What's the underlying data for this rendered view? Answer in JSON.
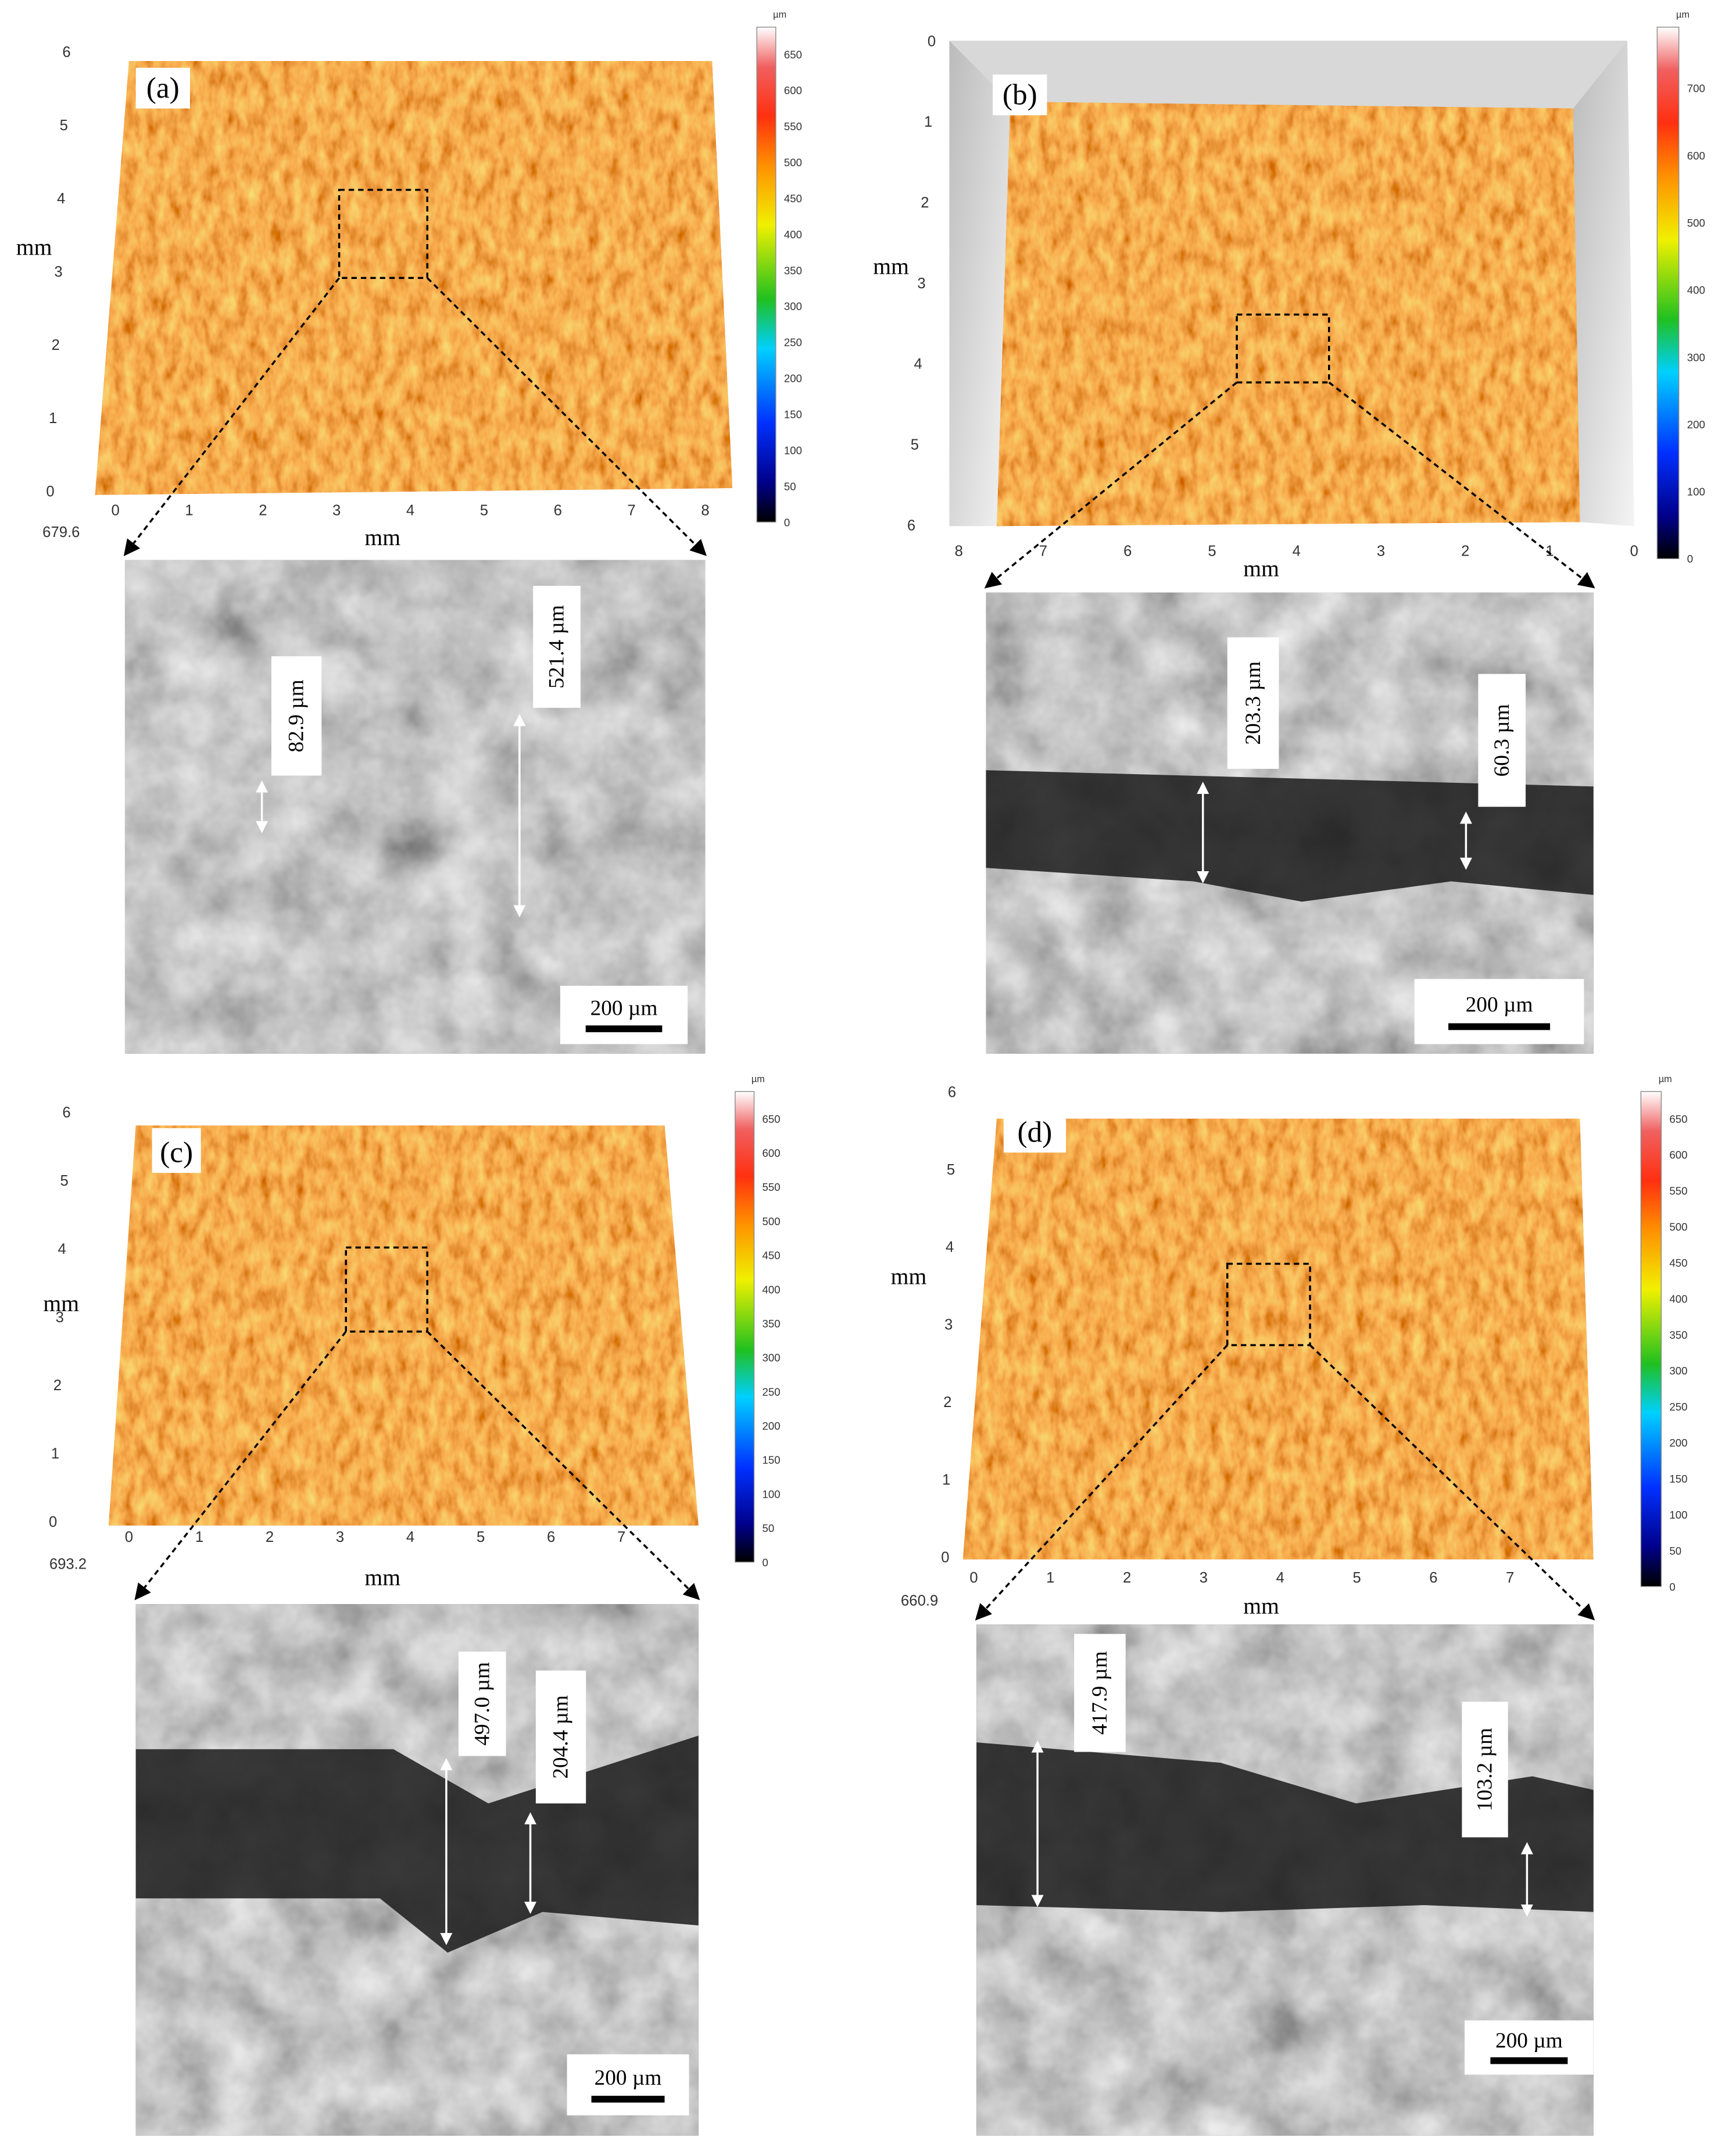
{
  "panels": [
    {
      "label": "(a)",
      "profile": {
        "y_axis_label": "mm",
        "x_axis_label": "mm",
        "y_ticks": [
          "0",
          "1",
          "2",
          "3",
          "4",
          "5",
          "6"
        ],
        "x_ticks": [
          "0",
          "1",
          "2",
          "3",
          "4",
          "5",
          "6",
          "7",
          "8"
        ],
        "corner_value": "679.6",
        "colorbar_unit": "µm",
        "colorbar_ticks": [
          "0",
          "50",
          "100",
          "150",
          "200",
          "250",
          "300",
          "350",
          "400",
          "450",
          "500",
          "550",
          "600",
          "650"
        ]
      },
      "sem": {
        "measurements": [
          "82.9 µm",
          "521.4 µm"
        ],
        "scale_bar": "200 µm"
      }
    },
    {
      "label": "(b)",
      "profile": {
        "y_axis_label": "mm",
        "x_axis_label": "mm",
        "y_ticks": [
          "0",
          "1",
          "2",
          "3",
          "4",
          "5",
          "6"
        ],
        "x_ticks": [
          "8",
          "7",
          "6",
          "5",
          "4",
          "3",
          "2",
          "1",
          "0"
        ],
        "colorbar_unit": "µm",
        "colorbar_ticks": [
          "0",
          "100",
          "200",
          "300",
          "400",
          "500",
          "600",
          "700"
        ]
      },
      "sem": {
        "measurements": [
          "203.3 µm",
          "60.3 µm"
        ],
        "scale_bar": "200 µm"
      }
    },
    {
      "label": "(c)",
      "profile": {
        "y_axis_label": "mm",
        "x_axis_label": "mm",
        "y_ticks": [
          "0",
          "1",
          "2",
          "3",
          "4",
          "5",
          "6"
        ],
        "x_ticks": [
          "0",
          "1",
          "2",
          "3",
          "4",
          "5",
          "6",
          "7"
        ],
        "corner_value": "693.2",
        "colorbar_unit": "µm",
        "colorbar_ticks": [
          "0",
          "50",
          "100",
          "150",
          "200",
          "250",
          "300",
          "350",
          "400",
          "450",
          "500",
          "550",
          "600",
          "650"
        ]
      },
      "sem": {
        "measurements": [
          "497.0 µm",
          "204.4 µm"
        ],
        "scale_bar": "200 µm"
      }
    },
    {
      "label": "(d)",
      "profile": {
        "y_axis_label": "mm",
        "x_axis_label": "mm",
        "y_ticks": [
          "0",
          "1",
          "2",
          "3",
          "4",
          "5",
          "6"
        ],
        "x_ticks": [
          "0",
          "1",
          "2",
          "3",
          "4",
          "5",
          "6",
          "7"
        ],
        "corner_value": "660.9",
        "colorbar_unit": "µm",
        "colorbar_ticks": [
          "0",
          "50",
          "100",
          "150",
          "200",
          "250",
          "300",
          "350",
          "400",
          "450",
          "500",
          "550",
          "600",
          "650"
        ]
      },
      "sem": {
        "measurements": [
          "417.9 µm",
          "103.2 µm"
        ],
        "scale_bar": "200 µm"
      }
    }
  ]
}
